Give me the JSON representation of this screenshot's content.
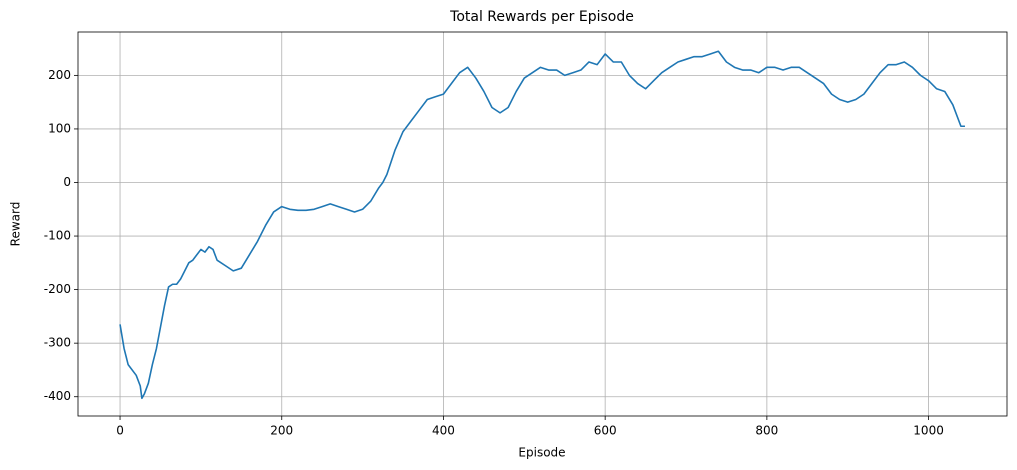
{
  "chart_data": {
    "type": "line",
    "title": "Total Rewards per Episode",
    "xlabel": "Episode",
    "ylabel": "Reward",
    "color": "#1f77b4",
    "grid": true,
    "xlim": [
      -52,
      1097
    ],
    "ylim": [
      -436,
      281
    ],
    "xticks": [
      0,
      200,
      400,
      600,
      800,
      1000
    ],
    "yticks": [
      -400,
      -300,
      -200,
      -100,
      0,
      100,
      200
    ],
    "x": [
      0,
      5,
      10,
      20,
      25,
      27,
      30,
      35,
      40,
      45,
      50,
      55,
      60,
      65,
      70,
      75,
      80,
      85,
      90,
      95,
      100,
      105,
      110,
      115,
      120,
      130,
      140,
      150,
      160,
      170,
      180,
      190,
      200,
      210,
      220,
      230,
      240,
      250,
      260,
      270,
      280,
      290,
      300,
      310,
      320,
      325,
      330,
      340,
      350,
      360,
      370,
      380,
      390,
      400,
      410,
      420,
      430,
      440,
      450,
      460,
      470,
      480,
      490,
      500,
      510,
      520,
      530,
      540,
      550,
      560,
      570,
      580,
      590,
      600,
      610,
      620,
      630,
      640,
      650,
      660,
      670,
      680,
      690,
      700,
      710,
      720,
      730,
      740,
      750,
      760,
      770,
      780,
      790,
      800,
      810,
      820,
      830,
      840,
      850,
      860,
      870,
      880,
      890,
      900,
      910,
      920,
      930,
      940,
      950,
      960,
      970,
      980,
      990,
      1000,
      1010,
      1020,
      1030,
      1040,
      1045
    ],
    "values": [
      -265,
      -310,
      -340,
      -360,
      -380,
      -403,
      -395,
      -375,
      -340,
      -310,
      -270,
      -230,
      -195,
      -190,
      -190,
      -180,
      -165,
      -150,
      -145,
      -135,
      -125,
      -130,
      -120,
      -125,
      -145,
      -155,
      -165,
      -160,
      -135,
      -110,
      -80,
      -55,
      -45,
      -50,
      -52,
      -52,
      -50,
      -45,
      -40,
      -45,
      -50,
      -55,
      -50,
      -35,
      -10,
      0,
      15,
      60,
      95,
      115,
      135,
      155,
      160,
      165,
      185,
      205,
      215,
      195,
      170,
      140,
      130,
      140,
      170,
      195,
      205,
      215,
      210,
      210,
      200,
      205,
      210,
      225,
      220,
      240,
      225,
      225,
      200,
      185,
      175,
      190,
      205,
      215,
      225,
      230,
      235,
      235,
      240,
      245,
      225,
      215,
      210,
      210,
      205,
      215,
      215,
      210,
      215,
      215,
      205,
      195,
      185,
      165,
      155,
      150,
      155,
      165,
      185,
      205,
      220,
      220,
      225,
      215,
      200,
      190,
      175,
      170,
      145,
      105,
      105
    ]
  }
}
